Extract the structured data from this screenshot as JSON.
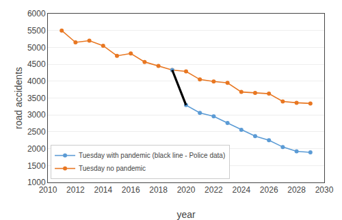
{
  "chart_data": {
    "type": "line",
    "xlabel": "year",
    "ylabel": "road accidents",
    "xlim": [
      2010,
      2030
    ],
    "ylim": [
      1000,
      6000
    ],
    "xticks": [
      2010,
      2012,
      2014,
      2016,
      2018,
      2020,
      2022,
      2024,
      2026,
      2028,
      2030
    ],
    "yticks": [
      1000,
      1500,
      2000,
      2500,
      3000,
      3500,
      4000,
      4500,
      5000,
      5500,
      6000
    ],
    "grid": "y",
    "legend": "lower left",
    "series": [
      {
        "name": "Tuesday no pandemic",
        "color": "#E87722",
        "marker": "circle",
        "x": [
          2011,
          2012,
          2013,
          2014,
          2015,
          2016,
          2017,
          2018,
          2019,
          2020,
          2021,
          2022,
          2023,
          2024,
          2025,
          2026,
          2027,
          2028,
          2029
        ],
        "values": [
          5500,
          5150,
          5200,
          5050,
          4750,
          4820,
          4570,
          4450,
          4330,
          4290,
          4050,
          3990,
          3950,
          3680,
          3650,
          3630,
          3400,
          3360,
          3340
        ]
      },
      {
        "name": "Tuesday with pandemic (black line - Police data)",
        "color": "#5B9BD5",
        "marker": "circle",
        "x": [
          2019,
          2020,
          2021,
          2022,
          2023,
          2024,
          2025,
          2026,
          2027,
          2028,
          2029
        ],
        "values": [
          4330,
          3290,
          3060,
          2960,
          2760,
          2560,
          2370,
          2250,
          2050,
          1920,
          1890
        ]
      },
      {
        "color": "#000000",
        "x": [
          2019,
          2020
        ],
        "values": [
          4330,
          3290
        ]
      }
    ]
  }
}
